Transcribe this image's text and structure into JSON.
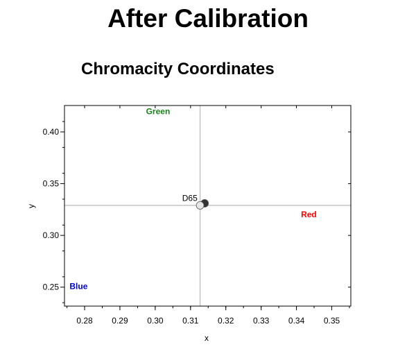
{
  "page_title": "After Calibration",
  "chart_data": {
    "type": "scatter",
    "title": "Chromacity Coordinates",
    "xlabel": "x",
    "ylabel": "y",
    "xlim": [
      0.2743,
      0.3554
    ],
    "ylim": [
      0.2317,
      0.4255
    ],
    "x_ticks": [
      "0.28",
      "0.29",
      "0.30",
      "0.31",
      "0.32",
      "0.33",
      "0.34",
      "0.35"
    ],
    "y_ticks": [
      "0.25",
      "0.30",
      "0.35",
      "0.40"
    ],
    "reference_lines": {
      "x": 0.3127,
      "y": 0.329
    },
    "annotations": [
      {
        "text": "Green",
        "x": 0.3008,
        "y": 0.417,
        "color": "#1a7f1a"
      },
      {
        "text": "Red",
        "x": 0.3435,
        "y": 0.3175,
        "color": "#ff0000"
      },
      {
        "text": "Blue",
        "x": 0.2783,
        "y": 0.248,
        "color": "#0000cc"
      },
      {
        "text": "D65",
        "x": 0.3098,
        "y": 0.3333,
        "color": "#000000"
      }
    ],
    "points": [
      {
        "x": 0.314,
        "y": 0.331,
        "color": "#333333"
      },
      {
        "x": 0.3127,
        "y": 0.329,
        "color": "#e6e6e6"
      }
    ],
    "grid": false
  }
}
